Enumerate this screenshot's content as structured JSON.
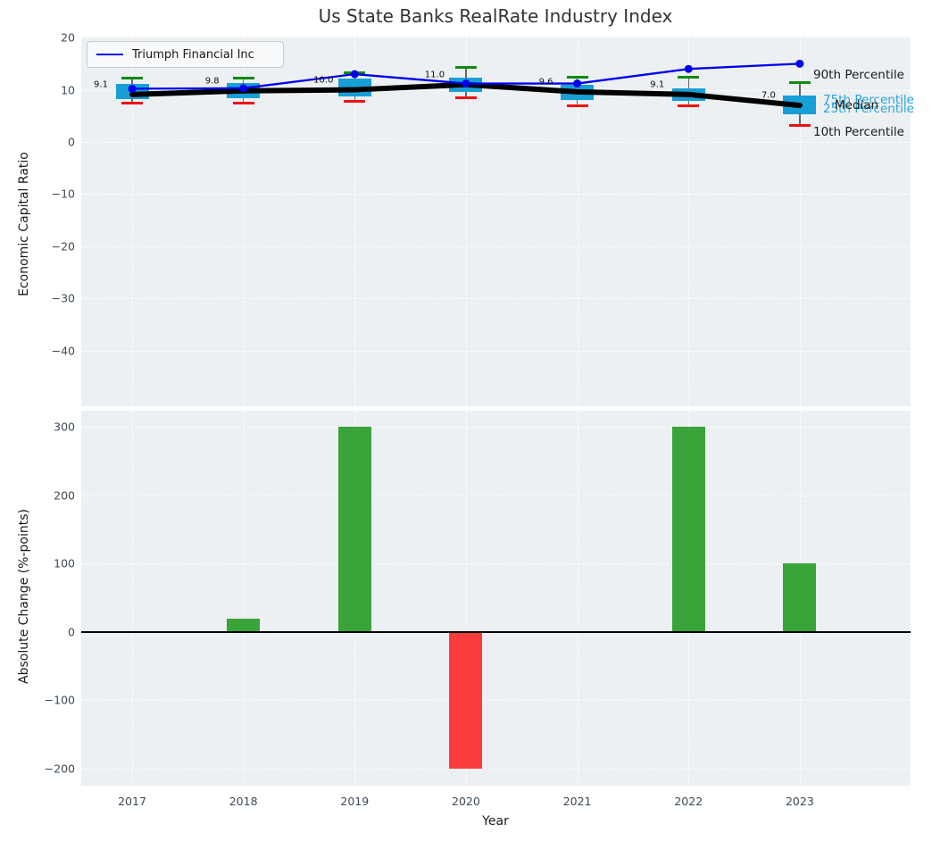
{
  "title": "Us State Banks RealRate Industry Index",
  "legend": {
    "label": "Triumph Financial Inc"
  },
  "colors": {
    "triumph_line": "#0000ee",
    "median_line": "#000000",
    "box_fill": "#189fd5",
    "cap_high": "#118a11",
    "cap_low": "#ee1111",
    "bar_positive": "#3aa33a",
    "bar_negative": "#fa3c3c",
    "plot_background": "#ecf0f2",
    "tick_text": "#3e4a57"
  },
  "right_labels": [
    {
      "text": "90th Percentile",
      "color": "#1a1a1a"
    },
    {
      "text": "75th Percentile",
      "color": "#2ba3d4"
    },
    {
      "text": "Median",
      "color": "#1a1a1a"
    },
    {
      "text": "25th Percentile",
      "color": "#2ba3d4"
    },
    {
      "text": "10th Percentile",
      "color": "#1a1a1a"
    }
  ],
  "chart_data": [
    {
      "type": "boxplot+line",
      "title": "Us State Banks RealRate Industry Index",
      "ylabel": "Economic Capital Ratio",
      "categories": [
        "2017",
        "2018",
        "2019",
        "2020",
        "2021",
        "2022",
        "2023"
      ],
      "yticks": [
        20,
        10,
        0,
        -10,
        -20,
        -30,
        -40
      ],
      "ylim": [
        -50.7,
        20.2
      ],
      "grid": true,
      "legend_position": "upper left",
      "boxes": [
        {
          "year": "2017",
          "p10": 7.4,
          "p25": 8.2,
          "median": 9.1,
          "p75": 11.2,
          "p90": 12.2
        },
        {
          "year": "2018",
          "p10": 7.5,
          "p25": 8.4,
          "median": 9.8,
          "p75": 11.3,
          "p90": 12.3
        },
        {
          "year": "2019",
          "p10": 7.7,
          "p25": 8.7,
          "median": 10.0,
          "p75": 12.1,
          "p90": 13.2
        },
        {
          "year": "2020",
          "p10": 8.4,
          "p25": 9.5,
          "median": 11.0,
          "p75": 12.4,
          "p90": 14.3
        },
        {
          "year": "2021",
          "p10": 7.0,
          "p25": 8.1,
          "median": 9.6,
          "p75": 11.0,
          "p90": 12.4
        },
        {
          "year": "2022",
          "p10": 6.9,
          "p25": 7.8,
          "median": 9.1,
          "p75": 10.3,
          "p90": 12.4
        },
        {
          "year": "2023",
          "p10": 3.1,
          "p25": 5.3,
          "median": 7.0,
          "p75": 8.9,
          "p90": 11.3
        }
      ],
      "median_annotations": [
        "9.1",
        "9.8",
        "10.0",
        "11.0",
        "9.6",
        "9.1",
        "7.0"
      ],
      "series": [
        {
          "name": "Triumph Financial Inc",
          "values": [
            10.2,
            10.3,
            13.0,
            11.2,
            11.2,
            14.0,
            15.0
          ]
        },
        {
          "name": "Median",
          "values": [
            9.1,
            9.8,
            10.0,
            11.0,
            9.6,
            9.1,
            7.0
          ]
        }
      ]
    },
    {
      "type": "bar",
      "ylabel": "Absolute Change (%-points)",
      "xlabel": "Year",
      "categories": [
        "2017",
        "2018",
        "2019",
        "2020",
        "2021",
        "2022",
        "2023"
      ],
      "values": [
        0,
        20,
        300,
        -200,
        0,
        300,
        100
      ],
      "yticks": [
        300,
        200,
        100,
        0,
        -100,
        -200
      ],
      "ylim": [
        -225,
        324
      ],
      "grid": true
    }
  ]
}
